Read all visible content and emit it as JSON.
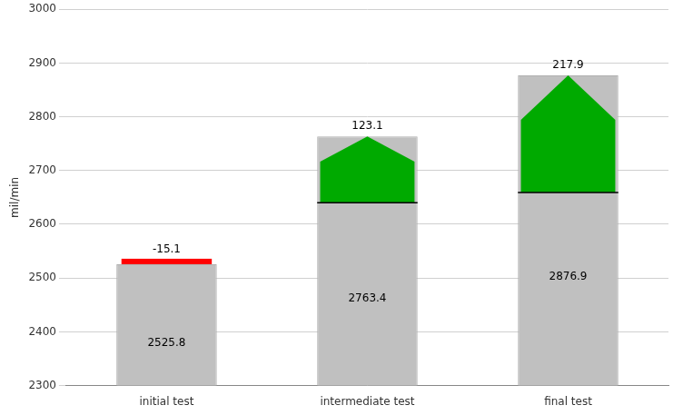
{
  "chart_data": {
    "type": "bar",
    "categories": [
      "initial test",
      "intermediate test",
      "final test"
    ],
    "values": [
      2525.8,
      2763.4,
      2876.9
    ],
    "color": "#c0c0c0",
    "data_labels": true,
    "ylabel": "mil/min",
    "ylim": [
      2300,
      3000
    ],
    "yticks": [
      2300,
      2400,
      2500,
      2600,
      2700,
      2800,
      2900,
      3000
    ],
    "grid": true,
    "differences": {
      "base_values": [
        2525.8,
        2640.3,
        2659.0
      ],
      "values": [
        -15.1,
        123.1,
        217.9
      ],
      "colors": [
        "#ff0000",
        "#00aa00",
        "#00aa00"
      ]
    }
  }
}
